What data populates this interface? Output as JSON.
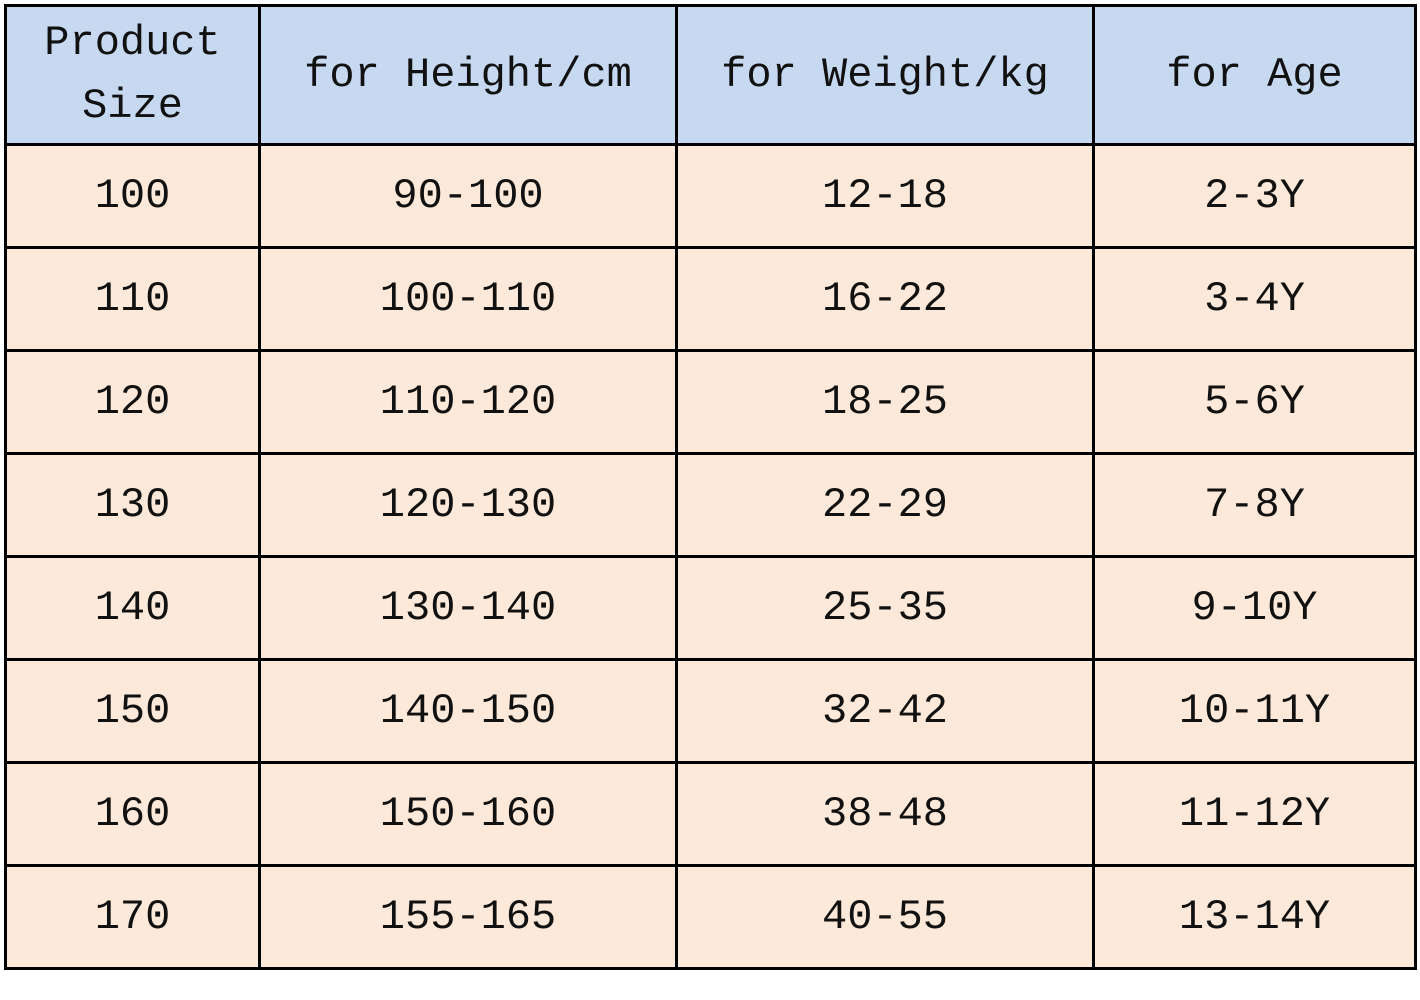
{
  "table": {
    "headers": [
      "Product Size",
      "for Height/cm",
      "for Weight/kg",
      "for Age"
    ],
    "rows": [
      [
        "100",
        "90-100",
        "12-18",
        "2-3Y"
      ],
      [
        "110",
        "100-110",
        "16-22",
        "3-4Y"
      ],
      [
        "120",
        "110-120",
        "18-25",
        "5-6Y"
      ],
      [
        "130",
        "120-130",
        "22-29",
        "7-8Y"
      ],
      [
        "140",
        "130-140",
        "25-35",
        "9-10Y"
      ],
      [
        "150",
        "140-150",
        "32-42",
        "10-11Y"
      ],
      [
        "160",
        "150-160",
        "38-48",
        "11-12Y"
      ],
      [
        "170",
        "155-165",
        "40-55",
        "13-14Y"
      ]
    ]
  }
}
